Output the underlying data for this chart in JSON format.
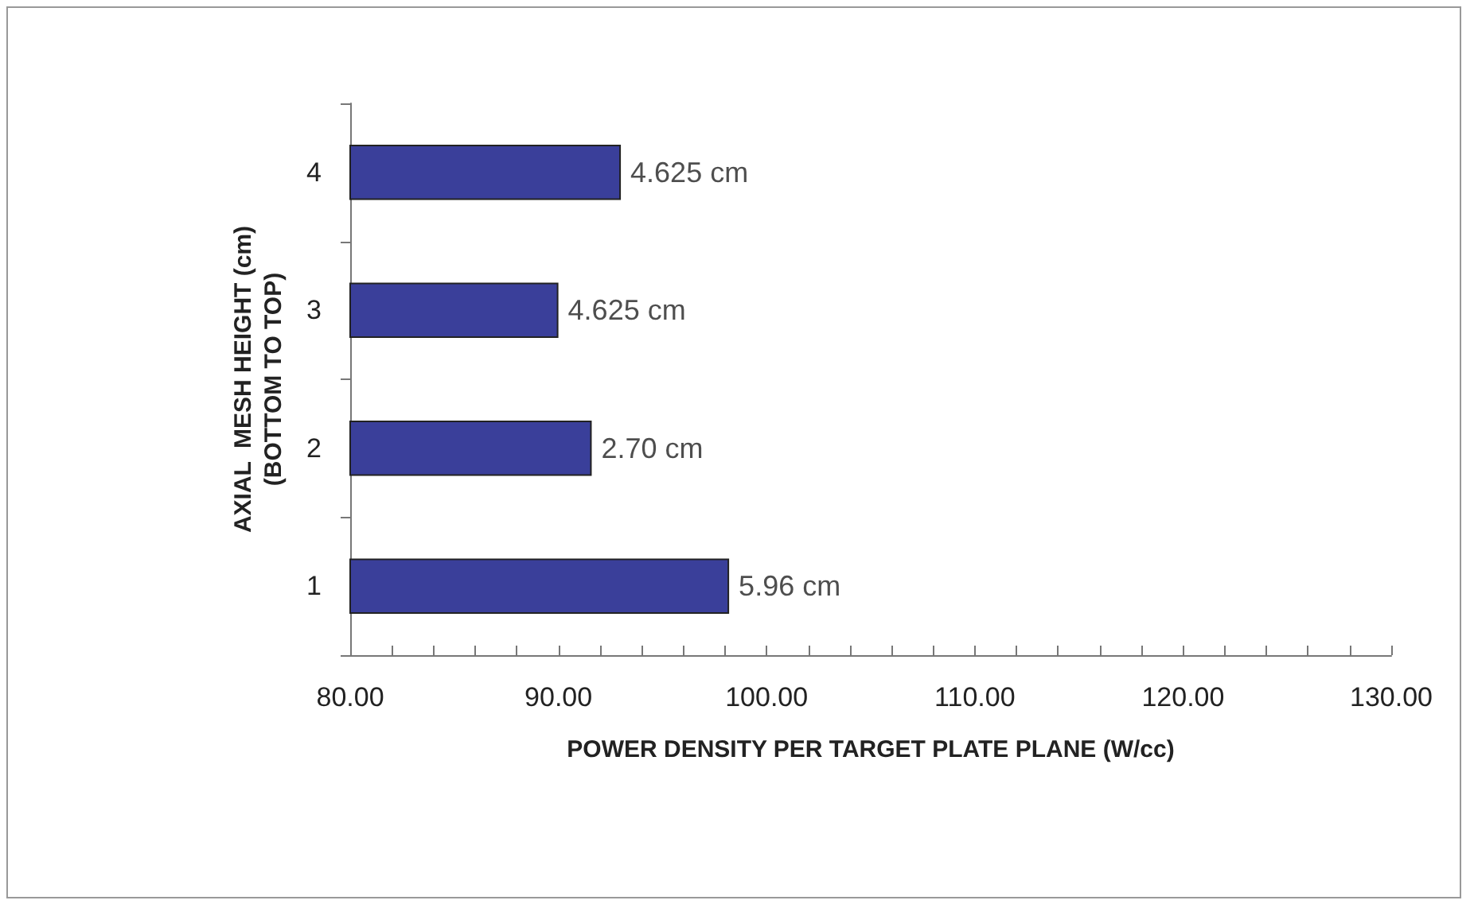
{
  "chart_data": {
    "type": "bar",
    "orientation": "horizontal",
    "xlabel": "POWER DENSITY PER TARGET PLATE PLANE (W/cc)",
    "ylabel": "AXIAL  MESH HEIGHT (cm)\n(BOTTOM TO TOP)",
    "categories": [
      "4",
      "3",
      "2",
      "1"
    ],
    "values": [
      93.0,
      90.0,
      91.6,
      98.2
    ],
    "annotations": [
      {
        "text": "4.625 cm",
        "x": 93.0,
        "y": "4"
      },
      {
        "text": "4.625 cm",
        "x": 90.0,
        "y": "3"
      },
      {
        "text": "2.70 cm",
        "x": 91.6,
        "y": "2"
      },
      {
        "text": "5.96 cm",
        "x": 98.2,
        "y": "1"
      }
    ],
    "color": "#3a3f9a",
    "xlim": [
      80,
      130
    ],
    "xticks": [
      {
        "value": 80,
        "label": "80.00"
      },
      {
        "value": 82,
        "label": null
      },
      {
        "value": 84,
        "label": null
      },
      {
        "value": 86,
        "label": null
      },
      {
        "value": 88,
        "label": null
      },
      {
        "value": 90,
        "label": "90.00"
      },
      {
        "value": 92,
        "label": null
      },
      {
        "value": 94,
        "label": null
      },
      {
        "value": 96,
        "label": null
      },
      {
        "value": 98,
        "label": null
      },
      {
        "value": 100,
        "label": "100.00"
      },
      {
        "value": 102,
        "label": null
      },
      {
        "value": 104,
        "label": null
      },
      {
        "value": 106,
        "label": null
      },
      {
        "value": 108,
        "label": null
      },
      {
        "value": 110,
        "label": "110.00"
      },
      {
        "value": 112,
        "label": null
      },
      {
        "value": 114,
        "label": null
      },
      {
        "value": 116,
        "label": null
      },
      {
        "value": 118,
        "label": null
      },
      {
        "value": 120,
        "label": "120.00"
      },
      {
        "value": 122,
        "label": null
      },
      {
        "value": 124,
        "label": null
      },
      {
        "value": 126,
        "label": null
      },
      {
        "value": 128,
        "label": null
      },
      {
        "value": 130,
        "label": "130.00"
      }
    ],
    "grid": false
  }
}
